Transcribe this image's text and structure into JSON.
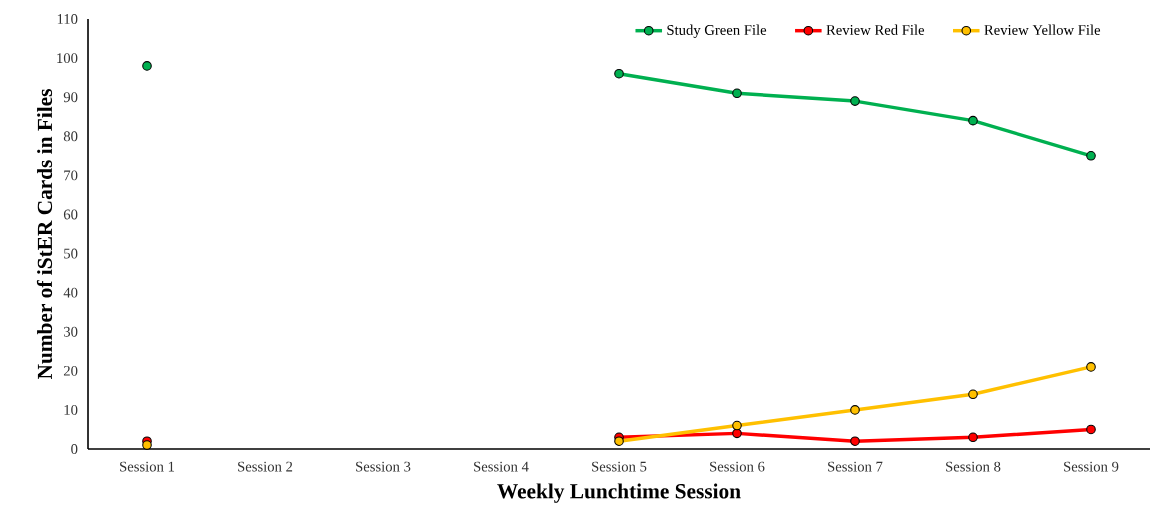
{
  "chart_data": {
    "type": "line",
    "xlabel": "Weekly Lunchtime Session",
    "ylabel": "Number of iStER Cards in Files",
    "categories": [
      "Session 1",
      "Session 2",
      "Session 3",
      "Session 4",
      "Session 5",
      "Session 6",
      "Session 7",
      "Session 8",
      "Session 9"
    ],
    "series": [
      {
        "name": "Study Green File",
        "color": "#00b050",
        "values": [
          98,
          null,
          null,
          null,
          96,
          91,
          89,
          84,
          75
        ]
      },
      {
        "name": "Review Red File",
        "color": "#ff0000",
        "values": [
          2,
          null,
          null,
          null,
          3,
          4,
          2,
          3,
          5
        ]
      },
      {
        "name": "Review Yellow File",
        "color": "#ffc000",
        "values": [
          1,
          null,
          null,
          null,
          2,
          6,
          10,
          14,
          21
        ]
      }
    ],
    "ylim": [
      0,
      110
    ],
    "yticks": [
      0,
      10,
      20,
      30,
      40,
      50,
      60,
      70,
      80,
      90,
      100,
      110
    ],
    "grid": false,
    "legend": "top right",
    "marker": "circle",
    "line_style": "solid"
  }
}
